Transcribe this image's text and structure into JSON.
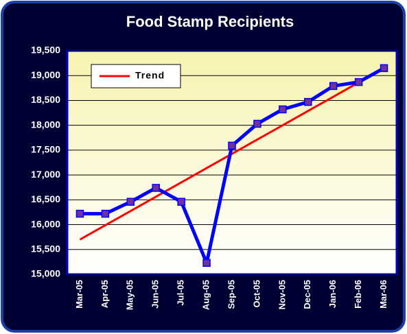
{
  "chart_data": {
    "type": "line",
    "title": "Food Stamp Recipients",
    "categories": [
      "Mar-05",
      "Apr-05",
      "May-05",
      "Jun-05",
      "Jul-05",
      "Aug-05",
      "Sep-05",
      "Oct-05",
      "Nov-05",
      "Dec-05",
      "Jan-06",
      "Feb-06",
      "Mar-06"
    ],
    "series": [
      {
        "color": "#0000ff",
        "marker_color": "#7030a0",
        "values": [
          16220,
          16220,
          16460,
          16740,
          16460,
          15230,
          17590,
          18030,
          18320,
          18470,
          18790,
          18870,
          19150
        ]
      },
      {
        "name": "Trend",
        "color": "#ff0000",
        "values": [
          15700,
          15988,
          16275,
          16563,
          16850,
          17138,
          17425,
          17713,
          18000,
          18288,
          18575,
          18863,
          19150
        ]
      }
    ],
    "ylim": [
      15000,
      19500
    ],
    "yticks": [
      {
        "value": 15000,
        "label": "15,000"
      },
      {
        "value": 15500,
        "label": "15,500"
      },
      {
        "value": 16000,
        "label": "16,000"
      },
      {
        "value": 16500,
        "label": "16,500"
      },
      {
        "value": 17000,
        "label": "17,000"
      },
      {
        "value": 17500,
        "label": "17,500"
      },
      {
        "value": 18000,
        "label": "18,000"
      },
      {
        "value": 18500,
        "label": "18,500"
      },
      {
        "value": 19000,
        "label": "19,000"
      },
      {
        "value": 19500,
        "label": "19,500"
      }
    ],
    "grid": true,
    "legend": "upper left"
  }
}
